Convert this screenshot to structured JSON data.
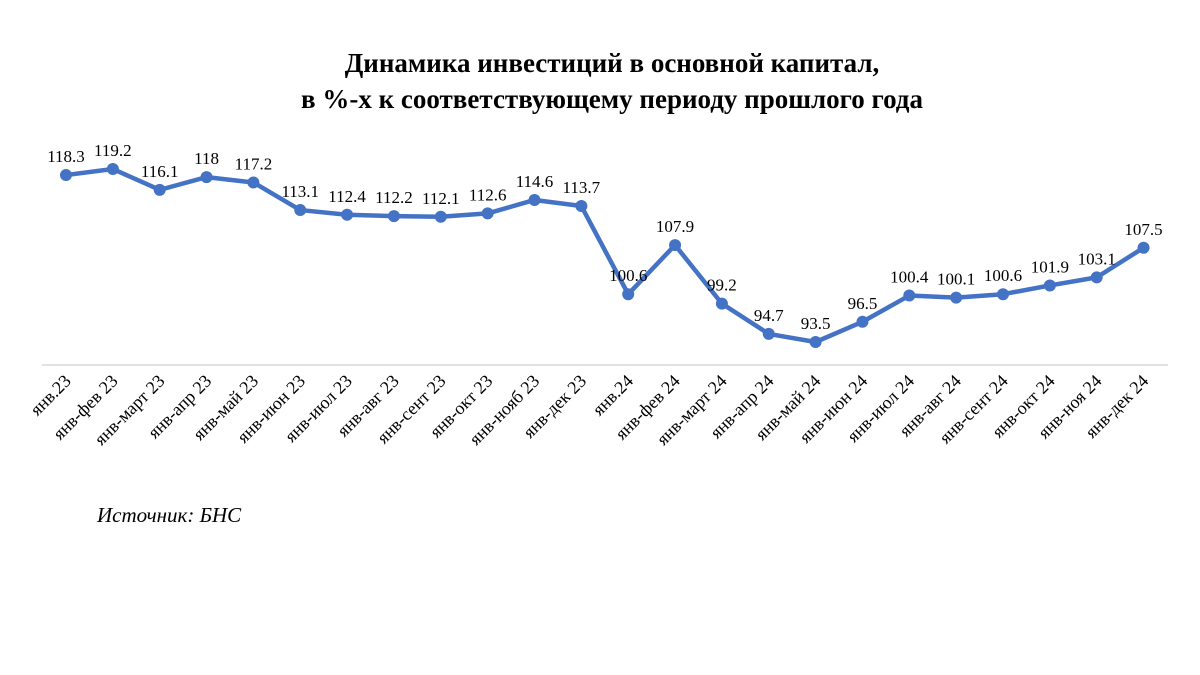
{
  "chart_data": {
    "type": "line",
    "title_lines": [
      "Динамика инвестиций в основной капитал,",
      "в %-х к соответствующему периоду прошлого года"
    ],
    "categories": [
      "янв.23",
      "янв-фев 23",
      "янв-март 23",
      "янв-апр 23",
      "янв-май 23",
      "янв-июн 23",
      "янв-июл 23",
      "янв-авг 23",
      "янв-сент 23",
      "янв-окт 23",
      "янв-нояб 23",
      "янв-дек 23",
      "янв.24",
      "янв-фев 24",
      "янв-март 24",
      "янв-апр 24",
      "янв-май 24",
      "янв-июн 24",
      "янв-июл 24",
      "янв-авг 24",
      "янв-сент 24",
      "янв-окт 24",
      "янв-ноя 24",
      "янв-дек 24"
    ],
    "series": [
      {
        "values": [
          118.3,
          119.2,
          116.1,
          118,
          117.2,
          113.1,
          112.4,
          112.2,
          112.1,
          112.6,
          114.6,
          113.7,
          100.6,
          107.9,
          99.2,
          94.7,
          93.5,
          96.5,
          100.4,
          100.1,
          100.6,
          101.9,
          103.1,
          107.5
        ],
        "labels": [
          "118.3",
          "119.2",
          "116.1",
          "118",
          "117.2",
          "113.1",
          "112.4",
          "112.2",
          "112.1",
          "112.6",
          "114.6",
          "113.7",
          "100.6",
          "107.9",
          "99.2",
          "94.7",
          "93.5",
          "96.5",
          "100.4",
          "100.1",
          "100.6",
          "101.9",
          "103.1",
          "107.5"
        ],
        "color": "#4472C4"
      }
    ],
    "ylim": [
      85,
      122
    ],
    "y_axis_visible": false,
    "grid": false,
    "legend": "none",
    "axis_color": "#D9D9D9"
  },
  "source": "Источник: БНС"
}
